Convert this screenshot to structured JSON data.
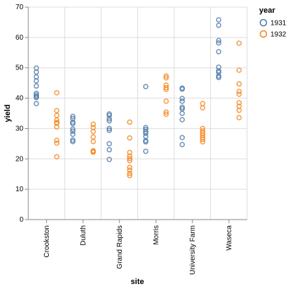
{
  "chart_data": {
    "type": "scatter",
    "xlabel": "site",
    "ylabel": "yield",
    "ylim": [
      0,
      70
    ],
    "yticks": [
      0,
      10,
      20,
      30,
      40,
      50,
      60,
      70
    ],
    "grid": true,
    "legend": {
      "title": "year",
      "placement": "top-right"
    },
    "categories": [
      "Crookston",
      "Duluth",
      "Grand Rapids",
      "Morris",
      "University Farm",
      "Waseca"
    ],
    "series": [
      {
        "name": "1931",
        "color": "#4c78a8",
        "points": [
          {
            "x": "Crookston",
            "y": 49.9
          },
          {
            "x": "Crookston",
            "y": 48.6
          },
          {
            "x": "Crookston",
            "y": 47.0
          },
          {
            "x": "Crookston",
            "y": 45.7
          },
          {
            "x": "Crookston",
            "y": 44.0
          },
          {
            "x": "Crookston",
            "y": 41.6
          },
          {
            "x": "Crookston",
            "y": 41.0
          },
          {
            "x": "Crookston",
            "y": 40.5
          },
          {
            "x": "Crookston",
            "y": 40.2
          },
          {
            "x": "Crookston",
            "y": 38.2
          },
          {
            "x": "Duluth",
            "y": 34.0
          },
          {
            "x": "Duluth",
            "y": 33.3
          },
          {
            "x": "Duluth",
            "y": 32.1
          },
          {
            "x": "Duluth",
            "y": 31.6
          },
          {
            "x": "Duluth",
            "y": 29.8
          },
          {
            "x": "Duluth",
            "y": 29.1
          },
          {
            "x": "Duluth",
            "y": 28.1
          },
          {
            "x": "Duluth",
            "y": 26.2
          },
          {
            "x": "Duluth",
            "y": 25.7
          },
          {
            "x": "Grand Rapids",
            "y": 34.8
          },
          {
            "x": "Grand Rapids",
            "y": 34.3
          },
          {
            "x": "Grand Rapids",
            "y": 33.2
          },
          {
            "x": "Grand Rapids",
            "y": 32.5
          },
          {
            "x": "Grand Rapids",
            "y": 30.0
          },
          {
            "x": "Grand Rapids",
            "y": 29.4
          },
          {
            "x": "Grand Rapids",
            "y": 25.0
          },
          {
            "x": "Grand Rapids",
            "y": 23.0
          },
          {
            "x": "Grand Rapids",
            "y": 19.8
          },
          {
            "x": "Morris",
            "y": 43.8
          },
          {
            "x": "Morris",
            "y": 30.3
          },
          {
            "x": "Morris",
            "y": 29.7
          },
          {
            "x": "Morris",
            "y": 29.0
          },
          {
            "x": "Morris",
            "y": 28.4
          },
          {
            "x": "Morris",
            "y": 27.4
          },
          {
            "x": "Morris",
            "y": 26.0
          },
          {
            "x": "Morris",
            "y": 25.6
          },
          {
            "x": "Morris",
            "y": 22.5
          },
          {
            "x": "University Farm",
            "y": 43.3
          },
          {
            "x": "University Farm",
            "y": 43.0
          },
          {
            "x": "University Farm",
            "y": 39.9
          },
          {
            "x": "University Farm",
            "y": 39.0
          },
          {
            "x": "University Farm",
            "y": 37.0
          },
          {
            "x": "University Farm",
            "y": 36.5
          },
          {
            "x": "University Farm",
            "y": 35.0
          },
          {
            "x": "University Farm",
            "y": 32.9
          },
          {
            "x": "University Farm",
            "y": 27.0
          },
          {
            "x": "University Farm",
            "y": 24.7
          },
          {
            "x": "Waseca",
            "y": 65.8
          },
          {
            "x": "Waseca",
            "y": 64.0
          },
          {
            "x": "Waseca",
            "y": 59.0
          },
          {
            "x": "Waseca",
            "y": 58.2
          },
          {
            "x": "Waseca",
            "y": 55.3
          },
          {
            "x": "Waseca",
            "y": 50.2
          },
          {
            "x": "Waseca",
            "y": 49.0
          },
          {
            "x": "Waseca",
            "y": 48.5
          },
          {
            "x": "Waseca",
            "y": 47.3
          },
          {
            "x": "Waseca",
            "y": 46.8
          }
        ]
      },
      {
        "name": "1932",
        "color": "#f58518",
        "points": [
          {
            "x": "Crookston",
            "y": 41.8
          },
          {
            "x": "Crookston",
            "y": 35.9
          },
          {
            "x": "Crookston",
            "y": 34.3
          },
          {
            "x": "Crookston",
            "y": 32.8
          },
          {
            "x": "Crookston",
            "y": 32.0
          },
          {
            "x": "Crookston",
            "y": 31.8
          },
          {
            "x": "Crookston",
            "y": 30.5
          },
          {
            "x": "Crookston",
            "y": 26.1
          },
          {
            "x": "Crookston",
            "y": 25.2
          },
          {
            "x": "Crookston",
            "y": 20.7
          },
          {
            "x": "Duluth",
            "y": 31.4
          },
          {
            "x": "Duluth",
            "y": 30.3
          },
          {
            "x": "Duluth",
            "y": 29.0
          },
          {
            "x": "Duluth",
            "y": 27.2
          },
          {
            "x": "Duluth",
            "y": 25.7
          },
          {
            "x": "Duluth",
            "y": 22.7
          },
          {
            "x": "Duluth",
            "y": 22.4
          },
          {
            "x": "Duluth",
            "y": 22.2
          },
          {
            "x": "Grand Rapids",
            "y": 32.1
          },
          {
            "x": "Grand Rapids",
            "y": 26.9
          },
          {
            "x": "Grand Rapids",
            "y": 22.1
          },
          {
            "x": "Grand Rapids",
            "y": 20.9
          },
          {
            "x": "Grand Rapids",
            "y": 20.1
          },
          {
            "x": "Grand Rapids",
            "y": 19.4
          },
          {
            "x": "Grand Rapids",
            "y": 17.2
          },
          {
            "x": "Grand Rapids",
            "y": 16.3
          },
          {
            "x": "Grand Rapids",
            "y": 15.2
          },
          {
            "x": "Grand Rapids",
            "y": 14.5
          },
          {
            "x": "Morris",
            "y": 47.3
          },
          {
            "x": "Morris",
            "y": 46.7
          },
          {
            "x": "Morris",
            "y": 44.3
          },
          {
            "x": "Morris",
            "y": 43.5
          },
          {
            "x": "Morris",
            "y": 42.9
          },
          {
            "x": "Morris",
            "y": 39.0
          },
          {
            "x": "Morris",
            "y": 35.4
          },
          {
            "x": "Morris",
            "y": 34.7
          },
          {
            "x": "University Farm",
            "y": 38.2
          },
          {
            "x": "University Farm",
            "y": 36.8
          },
          {
            "x": "University Farm",
            "y": 30.0
          },
          {
            "x": "University Farm",
            "y": 29.2
          },
          {
            "x": "University Farm",
            "y": 28.5
          },
          {
            "x": "University Farm",
            "y": 27.8
          },
          {
            "x": "University Farm",
            "y": 27.0
          },
          {
            "x": "University Farm",
            "y": 26.4
          },
          {
            "x": "University Farm",
            "y": 25.6
          },
          {
            "x": "Waseca",
            "y": 58.1
          },
          {
            "x": "Waseca",
            "y": 49.2
          },
          {
            "x": "Waseca",
            "y": 44.7
          },
          {
            "x": "Waseca",
            "y": 42.2
          },
          {
            "x": "Waseca",
            "y": 41.3
          },
          {
            "x": "Waseca",
            "y": 38.5
          },
          {
            "x": "Waseca",
            "y": 37.3
          },
          {
            "x": "Waseca",
            "y": 36.0
          },
          {
            "x": "Waseca",
            "y": 33.6
          }
        ]
      }
    ]
  }
}
